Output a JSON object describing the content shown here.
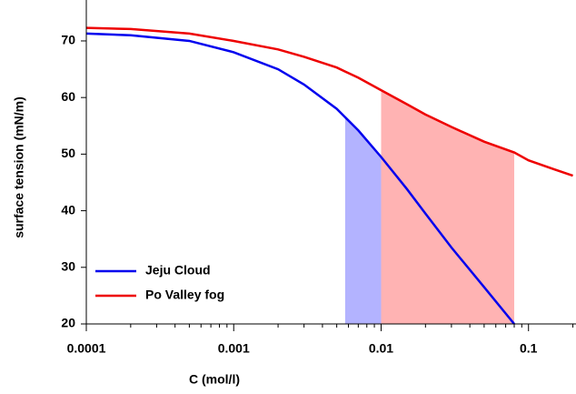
{
  "chart_data": {
    "type": "line",
    "xlabel": "C (mol/l)",
    "ylabel": "surface tension (mN/m)",
    "xscale": "log",
    "xlim": [
      0.0001,
      0.21
    ],
    "xticks": [
      0.0001,
      0.001,
      0.01,
      0.1
    ],
    "ylim": [
      20,
      75.3
    ],
    "yticks": [
      20,
      30,
      40,
      50,
      60,
      70
    ],
    "legend": "lower-left",
    "x": [
      0.0001,
      0.0002,
      0.0005,
      0.001,
      0.002,
      0.003,
      0.005,
      0.007,
      0.01,
      0.015,
      0.02,
      0.03,
      0.05,
      0.08,
      0.1,
      0.15,
      0.2
    ],
    "series": [
      {
        "name": "Jeju Cloud",
        "color": "#0000ee",
        "shade": [
          0.0057,
          0.0145
        ],
        "shade_color": "#b3b3ff",
        "values": [
          71.3,
          71.0,
          70.0,
          68.0,
          65.0,
          62.3,
          58.0,
          54.2,
          49.5,
          43.8,
          39.5,
          33.5,
          26.5,
          20.0,
          null,
          null,
          null
        ]
      },
      {
        "name": "Po Valley fog",
        "color": "#ee0000",
        "shade": [
          0.01,
          0.08
        ],
        "shade_color": "#ffb3b3",
        "values": [
          72.3,
          72.1,
          71.3,
          70.0,
          68.5,
          67.2,
          65.3,
          63.5,
          61.3,
          58.8,
          57.0,
          54.8,
          52.2,
          50.3,
          48.9,
          47.3,
          46.2
        ]
      }
    ]
  }
}
